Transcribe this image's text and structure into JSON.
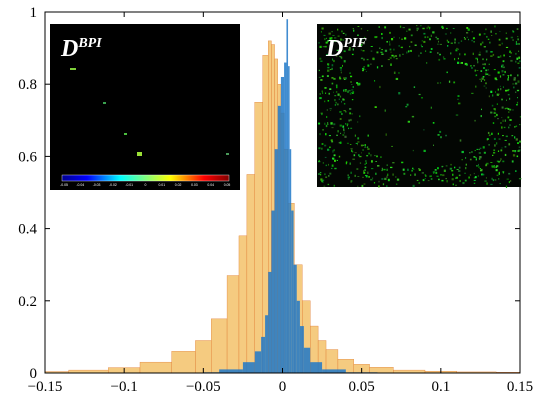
{
  "chart_data": {
    "type": "bar",
    "title": "",
    "xlabel": "",
    "ylabel": "",
    "xlim": [
      -0.15,
      0.15
    ],
    "ylim": [
      0,
      1
    ],
    "x_ticks": [
      -0.15,
      -0.1,
      -0.05,
      0,
      0.05,
      0.1,
      0.15
    ],
    "x_tick_labels": [
      "−0.15",
      "−0.1",
      "−0.05",
      "0",
      "0.05",
      "0.1",
      "0.15"
    ],
    "y_ticks": [
      0,
      0.2,
      0.4,
      0.6,
      0.8,
      1
    ],
    "y_tick_labels": [
      "0",
      "0.2",
      "0.4",
      "0.6",
      "0.8",
      "1"
    ],
    "grid": false,
    "series": [
      {
        "color": "#f5c97a",
        "edge_color": "#e07a30",
        "x": [
          -0.15,
          -0.12,
          -0.1,
          -0.08,
          -0.06,
          -0.05,
          -0.04,
          -0.03,
          -0.025,
          -0.02,
          -0.015,
          -0.01,
          -0.008,
          -0.006,
          -0.004,
          -0.002,
          0,
          0.002,
          0.005,
          0.01,
          0.015,
          0.02,
          0.025,
          0.03,
          0.04,
          0.05,
          0.06,
          0.08,
          0.1,
          0.12,
          0.15
        ],
        "values": [
          0.004,
          0.008,
          0.015,
          0.03,
          0.06,
          0.09,
          0.15,
          0.27,
          0.38,
          0.55,
          0.75,
          0.88,
          0.92,
          0.91,
          0.87,
          0.8,
          0.72,
          0.62,
          0.47,
          0.3,
          0.2,
          0.13,
          0.09,
          0.065,
          0.038,
          0.024,
          0.016,
          0.008,
          0.005,
          0.003,
          0.002
        ]
      },
      {
        "color": "#1f78c8",
        "x": [
          -0.05,
          -0.03,
          -0.02,
          -0.015,
          -0.012,
          -0.01,
          -0.008,
          -0.006,
          -0.004,
          -0.002,
          0,
          0.002,
          0.003,
          0.004,
          0.005,
          0.006,
          0.008,
          0.01,
          0.012,
          0.015,
          0.02,
          0.03,
          0.05
        ],
        "values": [
          0.002,
          0.01,
          0.03,
          0.06,
          0.1,
          0.16,
          0.28,
          0.45,
          0.62,
          0.74,
          0.82,
          0.86,
          0.98,
          0.85,
          0.62,
          0.45,
          0.3,
          0.2,
          0.13,
          0.07,
          0.03,
          0.01,
          0.002
        ]
      }
    ]
  },
  "insets": [
    {
      "title_main": "D",
      "title_sup": "BPI",
      "colorbar_labels": [
        "-0.05",
        "-0.04",
        "-0.03",
        "-0.02",
        "-0.01",
        "0",
        "0.01",
        "0.02",
        "0.03",
        "0.04",
        "0.05"
      ]
    },
    {
      "title_main": "D",
      "title_sup": "PIF"
    }
  ]
}
